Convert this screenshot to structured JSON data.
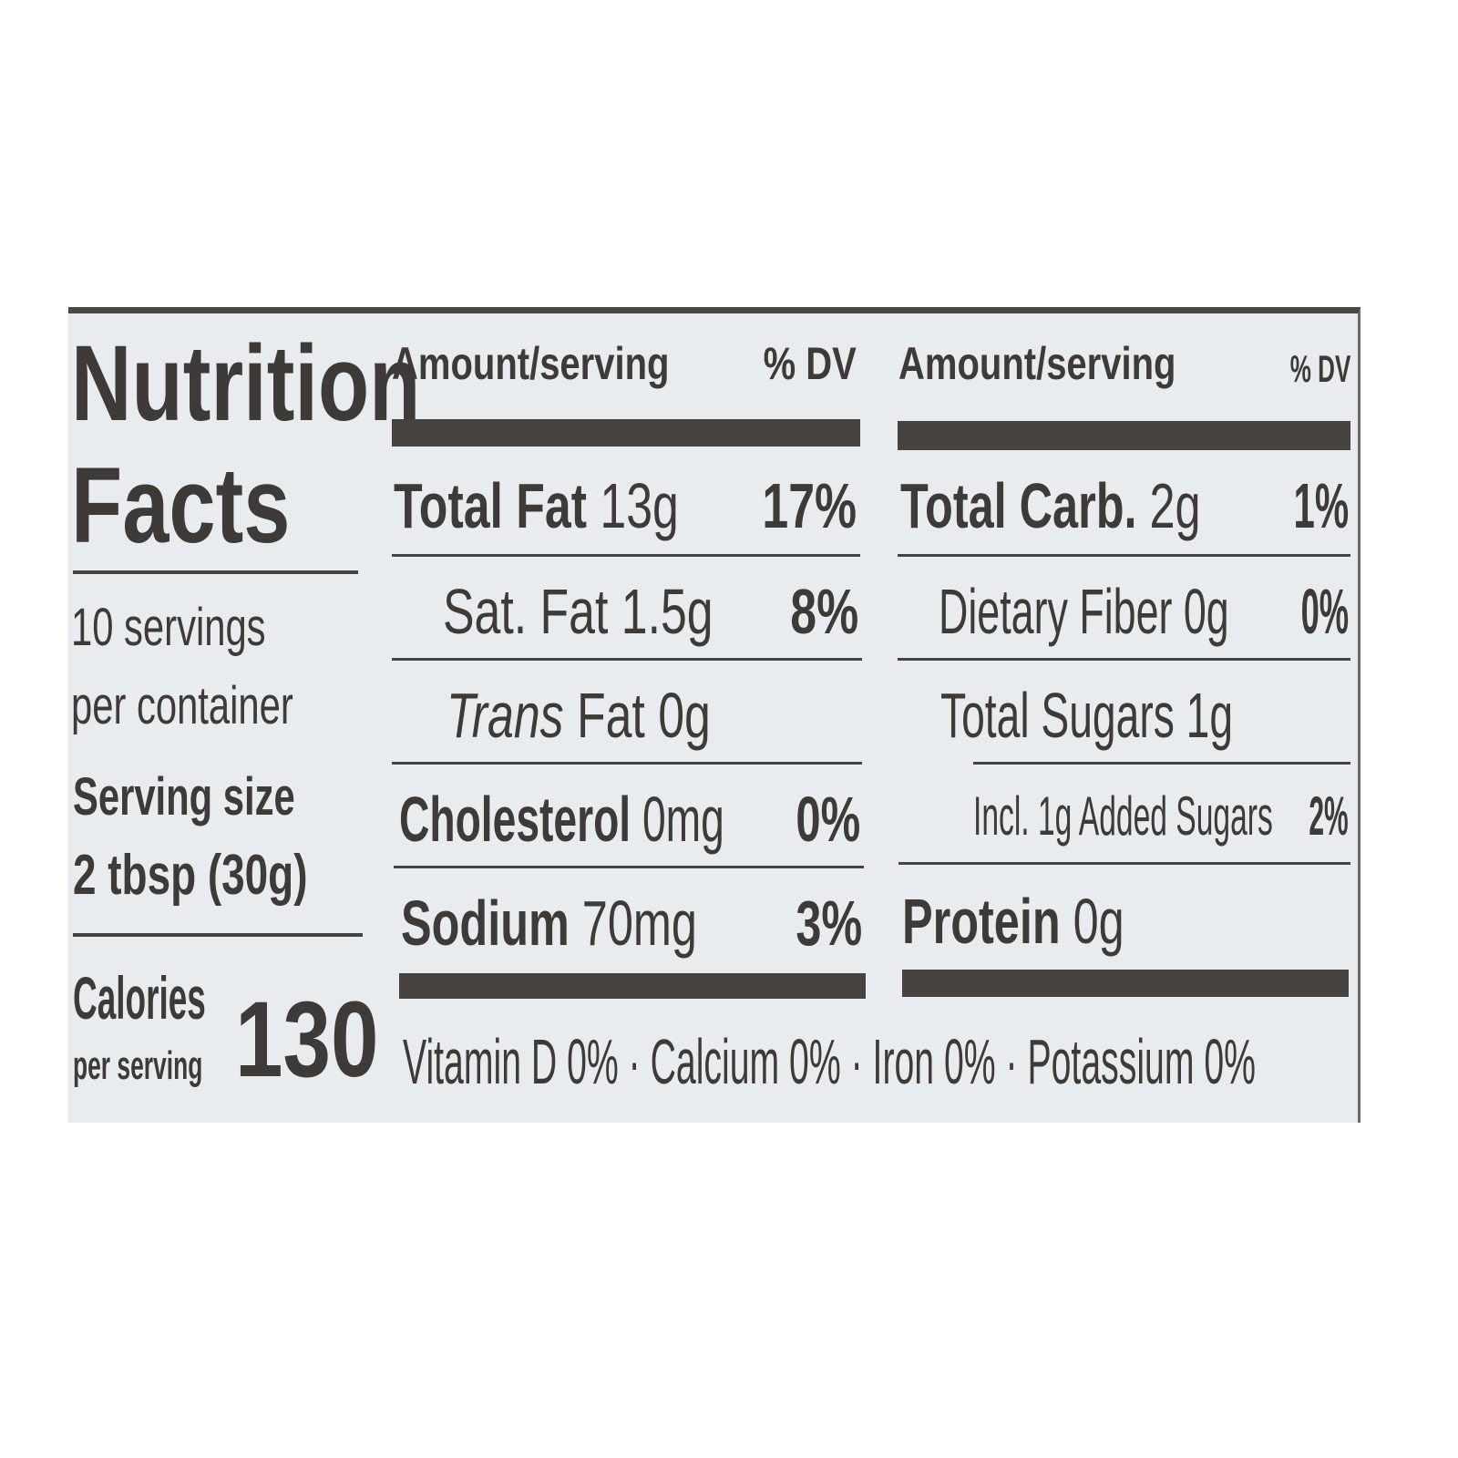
{
  "title_line1": "Nutrition",
  "title_line2": "Facts",
  "servings_line1": "10 servings",
  "servings_line2": "per container",
  "serving_size_label": "Serving size",
  "serving_size_value": "2 tbsp (30g)",
  "calories_label": "Calories",
  "calories_sub": "per serving",
  "calories_value": "130",
  "left_column": {
    "header_amount": "Amount/serving",
    "header_dv": "% DV",
    "rows": [
      {
        "name": "Total Fat",
        "amount": "13g",
        "dv": "17%"
      },
      {
        "name": "Sat. Fat",
        "amount": "1.5g",
        "dv": "8%"
      },
      {
        "name": "Trans",
        "name_rest": "Fat",
        "amount": "0g",
        "dv": ""
      },
      {
        "name": "Cholesterol",
        "amount": "0mg",
        "dv": "0%"
      },
      {
        "name": "Sodium",
        "amount": "70mg",
        "dv": "3%"
      }
    ]
  },
  "right_column": {
    "header_amount": "Amount/serving",
    "header_dv": "% DV",
    "rows": [
      {
        "name": "Total Carb.",
        "amount": "2g",
        "dv": "1%"
      },
      {
        "name": "Dietary Fiber",
        "amount": "0g",
        "dv": "0%"
      },
      {
        "name": "Total Sugars",
        "amount": "1g",
        "dv": ""
      },
      {
        "name": "Incl. 1g Added Sugars",
        "amount": "",
        "dv": "2%"
      },
      {
        "name": "Protein",
        "amount": "0g",
        "dv": ""
      }
    ]
  },
  "footer": "Vitamin D 0% · Calcium 0% · Iron 0% · Potassium 0%",
  "colors": {
    "ink": "#3d3a37",
    "label_bg": "#e9ecee"
  }
}
